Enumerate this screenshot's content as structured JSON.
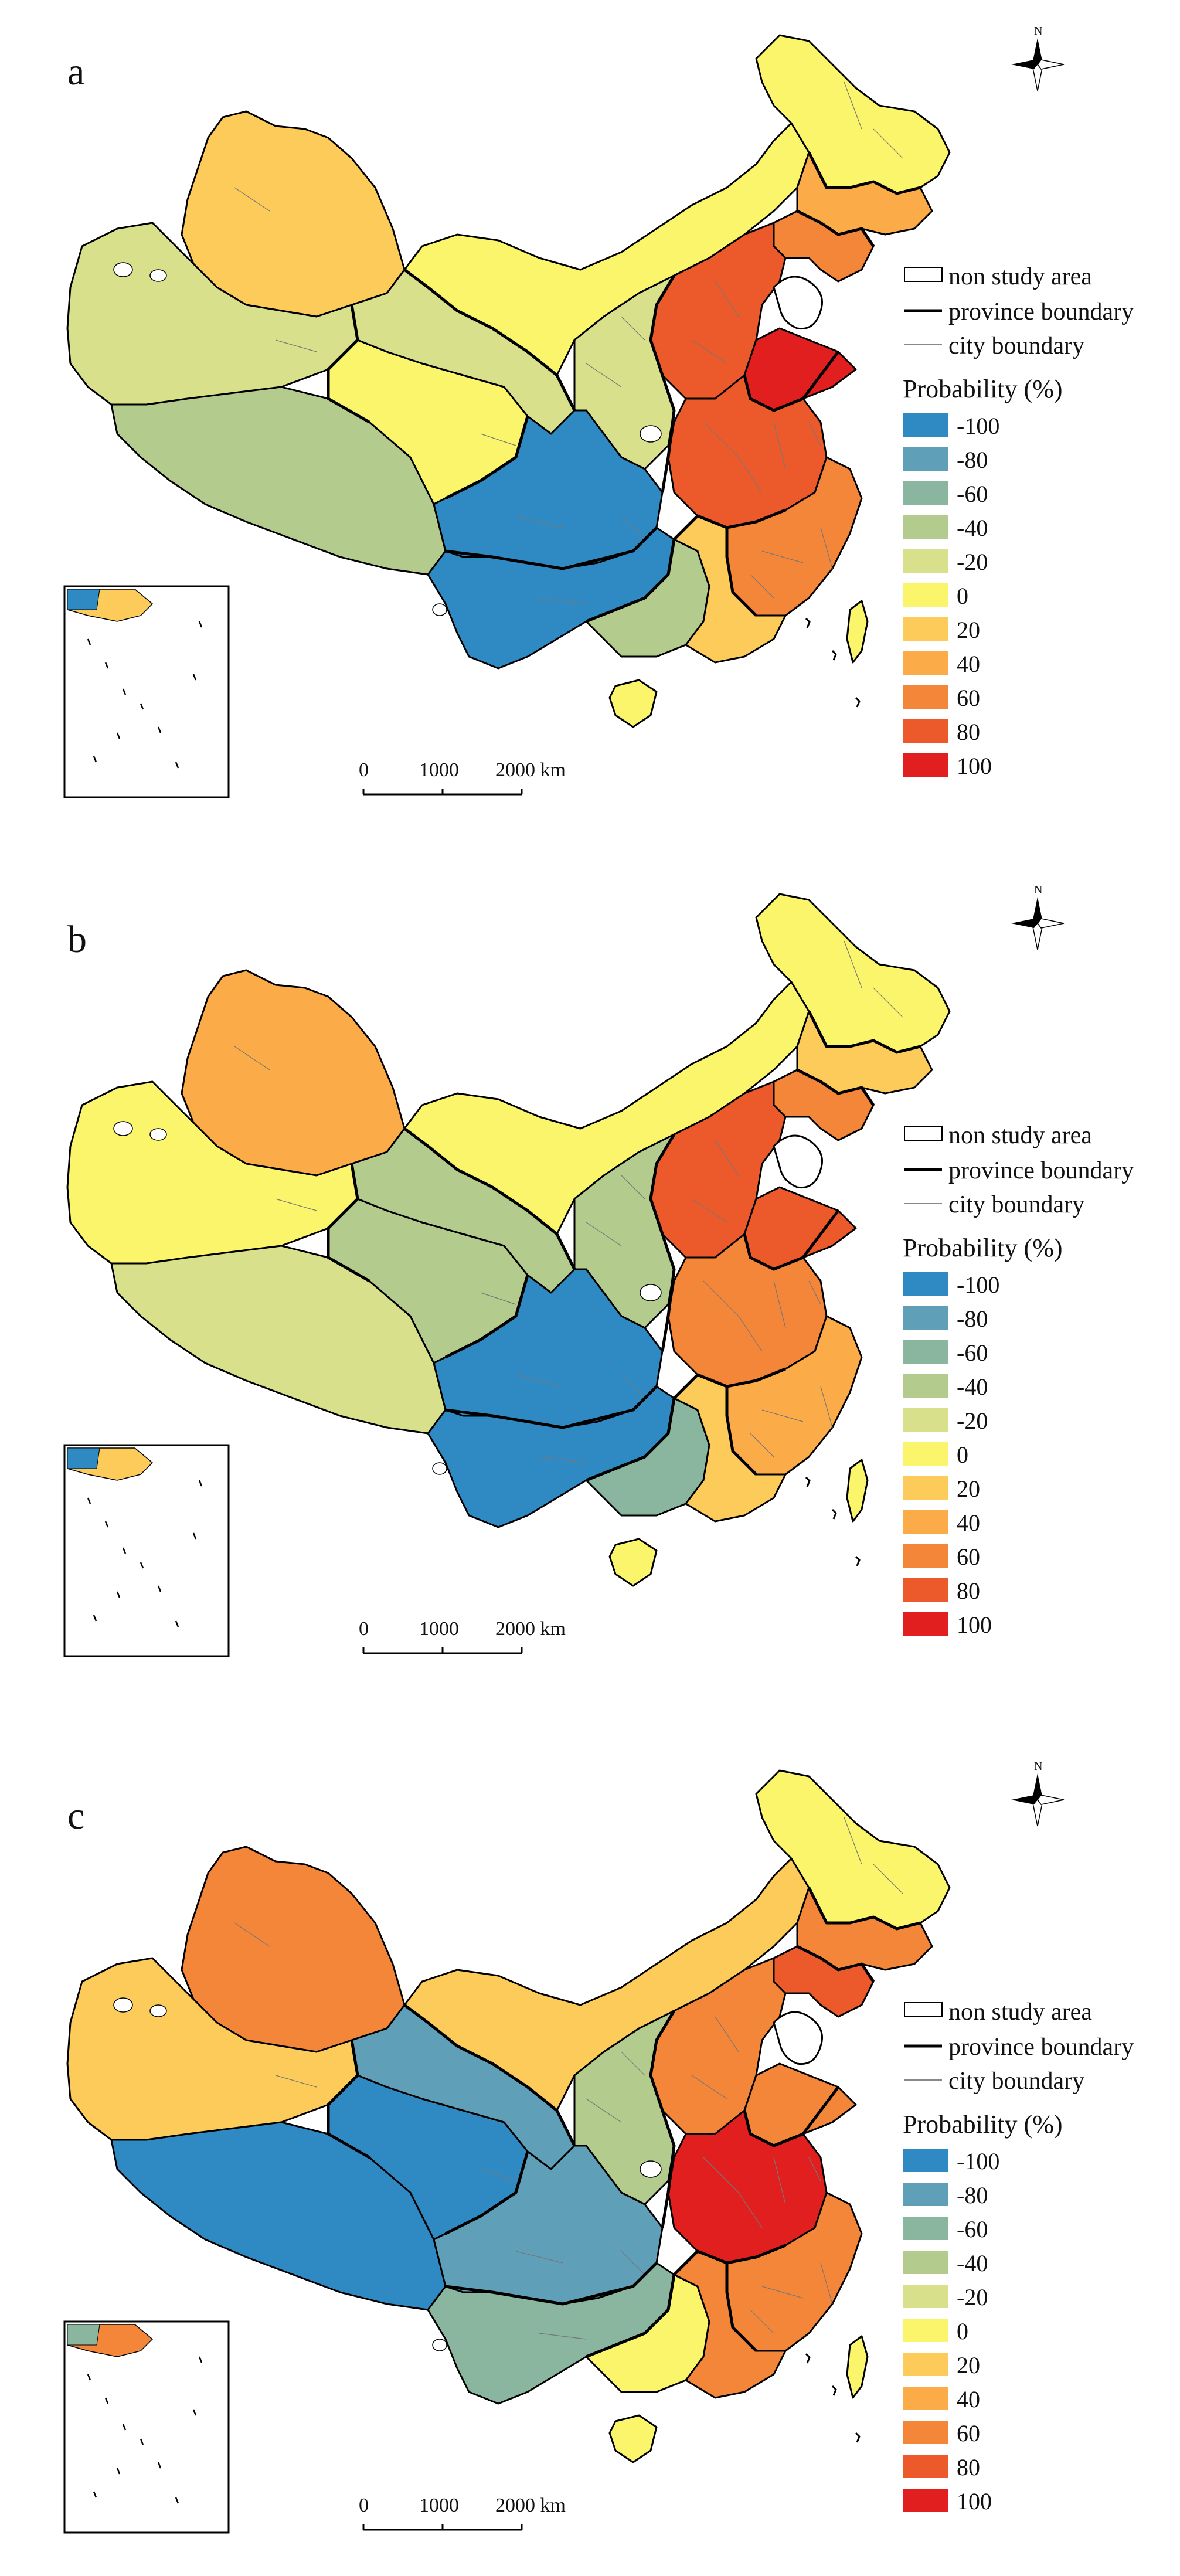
{
  "panels": [
    {
      "letter": "a",
      "legend_lines": [
        "non study area",
        "province boundary",
        "city boundary"
      ]
    },
    {
      "letter": "b",
      "legend_lines": [
        "non study area",
        "province boundary",
        "city boundary"
      ]
    },
    {
      "letter": "c",
      "legend_lines": [
        "non study area",
        "province boundary",
        "city boundary"
      ]
    }
  ],
  "legend": {
    "title": "Probability (%)",
    "classes": [
      {
        "label": "-100",
        "color": "#2f8ac4"
      },
      {
        "label": "-80",
        "color": "#5f9fb8"
      },
      {
        "label": "-60",
        "color": "#8ab6a0"
      },
      {
        "label": "-40",
        "color": "#b3cb8c"
      },
      {
        "label": "-20",
        "color": "#d8e08c"
      },
      {
        "label": "0",
        "color": "#fbf56b"
      },
      {
        "label": "20",
        "color": "#fccb5a"
      },
      {
        "label": "40",
        "color": "#fbab48"
      },
      {
        "label": "60",
        "color": "#f4863a"
      },
      {
        "label": "80",
        "color": "#ec5a2c"
      },
      {
        "label": "100",
        "color": "#e11f1f"
      }
    ]
  },
  "scale_bar": {
    "labels": [
      "0",
      "1000",
      "2000 km"
    ]
  },
  "north_arrow": {
    "label": "N"
  },
  "maps": {
    "a": {
      "xinjiang_n": 6,
      "xinjiang_s": 4,
      "tibet": 3,
      "qinghai": 5,
      "gansu": 4,
      "inner_mongolia": 5,
      "heilongjiang": 5,
      "jilin": 7,
      "liaoning": 8,
      "north_china": 9,
      "shandong": 10,
      "central": 9,
      "southeast": 8,
      "sichuan_chongqing": 0,
      "yunnan_guizhou": 0,
      "guangxi": 3,
      "guangdong": 6,
      "shaanxi": 4,
      "hainan": 5,
      "taiwan": 5
    },
    "b": {
      "xinjiang_n": 7,
      "xinjiang_s": 5,
      "tibet": 4,
      "qinghai": 3,
      "gansu": 3,
      "inner_mongolia": 5,
      "heilongjiang": 5,
      "jilin": 6,
      "liaoning": 8,
      "north_china": 9,
      "shandong": 9,
      "central": 8,
      "southeast": 7,
      "sichuan_chongqing": 0,
      "yunnan_guizhou": 0,
      "guangxi": 2,
      "guangdong": 6,
      "shaanxi": 3,
      "hainan": 5,
      "taiwan": 5
    },
    "c": {
      "xinjiang_n": 8,
      "xinjiang_s": 6,
      "tibet": 0,
      "qinghai": 0,
      "gansu": 1,
      "inner_mongolia": 6,
      "heilongjiang": 5,
      "jilin": 8,
      "liaoning": 9,
      "north_china": 8,
      "shandong": 8,
      "central": 10,
      "southeast": 8,
      "sichuan_chongqing": 1,
      "yunnan_guizhou": 2,
      "guangxi": 5,
      "guangdong": 8,
      "shaanxi": 3,
      "hainan": 5,
      "taiwan": 5
    }
  }
}
